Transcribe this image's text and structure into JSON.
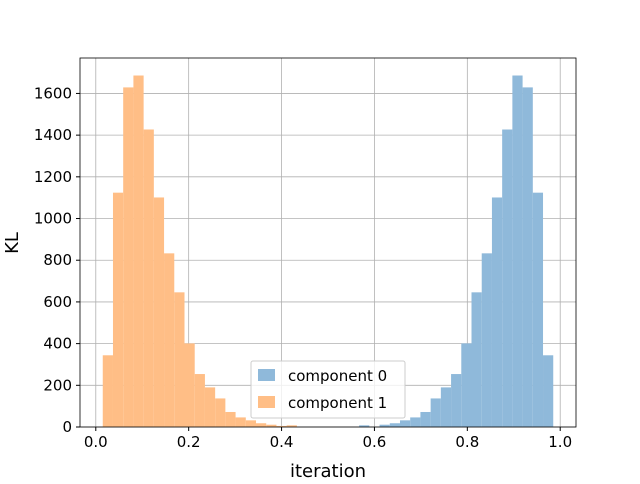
{
  "chart_data": {
    "type": "bar",
    "subtype": "histogram",
    "title": "",
    "xlabel": "iteration",
    "ylabel": "KL",
    "xlim": [
      -0.034,
      1.034
    ],
    "ylim": [
      0,
      1770
    ],
    "xticks": [
      "0.0",
      "0.2",
      "0.4",
      "0.6",
      "0.8",
      "1.0"
    ],
    "xtick_values": [
      0,
      0.2,
      0.4,
      0.6,
      0.8,
      1.0
    ],
    "yticks": [
      "0",
      "200",
      "400",
      "600",
      "800",
      "1000",
      "1200",
      "1400",
      "1600"
    ],
    "ytick_values": [
      0,
      200,
      400,
      600,
      800,
      1000,
      1200,
      1400,
      1600
    ],
    "grid": true,
    "legend_position": "lower-center",
    "bin_width": 0.022,
    "series": [
      {
        "name": "component 0",
        "color": "#8fb9da",
        "bin_start": 0.567,
        "values": [
          8,
          0,
          11,
          18,
          32,
          46,
          72,
          137,
          190,
          254,
          401,
          646,
          833,
          1101,
          1427,
          1686,
          1629,
          1124,
          344
        ]
      },
      {
        "name": "component 1",
        "color": "#ffbe86",
        "bin_start": 0.015,
        "values": [
          344,
          1124,
          1629,
          1686,
          1427,
          1101,
          833,
          646,
          401,
          254,
          190,
          137,
          72,
          46,
          32,
          18,
          11,
          5,
          8
        ]
      }
    ]
  }
}
